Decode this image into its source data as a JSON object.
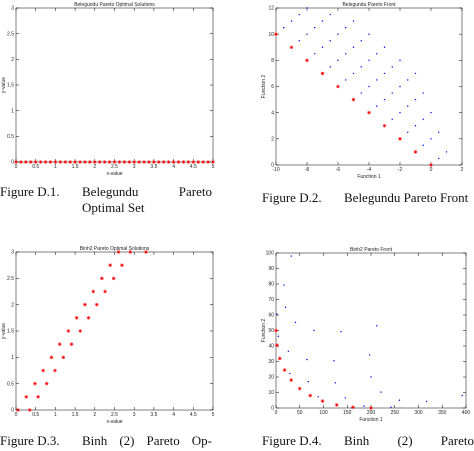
{
  "chart_data": [
    {
      "type": "scatter",
      "title": "Belegundu Pareto Optimal Solutions",
      "xlabel": "x-value",
      "ylabel": "y-value",
      "xlim": [
        0,
        5
      ],
      "ylim": [
        0,
        3
      ],
      "xticks": [
        0,
        0.5,
        1,
        1.5,
        2,
        2.5,
        3,
        3.5,
        4,
        4.5,
        5
      ],
      "yticks": [
        0,
        0.5,
        1,
        1.5,
        2,
        2.5,
        3
      ],
      "series": [
        {
          "color": "#ff0000",
          "marker": "star",
          "x": [
            0,
            0.125,
            0.25,
            0.375,
            0.5,
            0.625,
            0.75,
            0.875,
            1,
            1.125,
            1.25,
            1.375,
            1.5,
            1.625,
            1.75,
            1.875,
            2,
            2.125,
            2.25,
            2.375,
            2.5,
            2.625,
            2.75,
            2.875,
            3,
            3.125,
            3.25,
            3.375,
            3.5,
            3.625,
            3.75,
            3.875,
            4,
            4.125,
            4.25,
            4.375,
            4.5,
            4.625,
            4.75,
            4.875,
            5
          ],
          "values": [
            0,
            0,
            0,
            0,
            0,
            0,
            0,
            0,
            0,
            0,
            0,
            0,
            0,
            0,
            0,
            0,
            0,
            0,
            0,
            0,
            0,
            0,
            0,
            0,
            0,
            0,
            0,
            0,
            0,
            0,
            0,
            0,
            0,
            0,
            0,
            0,
            0,
            0,
            0,
            0,
            0
          ]
        }
      ]
    },
    {
      "type": "scatter",
      "title": "Belegundu Pareto Front",
      "xlabel": "Function 1",
      "ylabel": "Function 2",
      "xlim": [
        -10,
        2
      ],
      "ylim": [
        0,
        12
      ],
      "xticks": [
        -10,
        -8,
        -6,
        -4,
        -2,
        0,
        2
      ],
      "yticks": [
        0,
        2,
        4,
        6,
        8,
        10,
        12
      ],
      "series": [
        {
          "color": "#0000ff",
          "marker": "dot",
          "x": [
            0.5,
            -0.5,
            -1.5,
            -2.5,
            -3.5,
            -4.5,
            -5.5,
            -6.5,
            -7.5,
            -8.5,
            -9.5,
            1,
            0,
            -1,
            -2,
            -3,
            -4,
            -5,
            -6,
            -7,
            -8,
            -9,
            0.5,
            -0.5,
            -1.5,
            -2.5,
            -3.5,
            -4.5,
            -5.5,
            -6.5,
            -7.5,
            -8.5,
            0,
            -1,
            -2,
            -3,
            -4,
            -5,
            -6,
            -7,
            -8,
            -0.5,
            -1.5,
            -2.5,
            -3.5,
            -4.5,
            -5.5,
            -6.5,
            -1,
            -2,
            -3,
            -4,
            -5
          ],
          "values": [
            0.5,
            1.5,
            2.5,
            3.5,
            4.5,
            5.5,
            6.5,
            7.5,
            8.5,
            9.5,
            10.5,
            1,
            2,
            3,
            4,
            5,
            6,
            7,
            8,
            9,
            10,
            11,
            2.5,
            3.5,
            4.5,
            5.5,
            6.5,
            7.5,
            8.5,
            9.5,
            10.5,
            11.5,
            4,
            5,
            6,
            7,
            8,
            9,
            10,
            11,
            12,
            5.5,
            6.5,
            7.5,
            8.5,
            9.5,
            10.5,
            11.5,
            7,
            8,
            9,
            10,
            11
          ]
        },
        {
          "color": "#ff0000",
          "marker": "star",
          "x": [
            0,
            -1,
            -2,
            -3,
            -4,
            -5,
            -6,
            -7,
            -8,
            -9,
            -10
          ],
          "values": [
            0,
            1,
            2,
            3,
            4,
            5,
            6,
            7,
            8,
            9,
            10
          ]
        }
      ]
    },
    {
      "type": "scatter",
      "title": "Binh2 Pareto Optimal Solutions",
      "xlabel": "x-value",
      "ylabel": "y-value",
      "xlim": [
        0,
        5
      ],
      "ylim": [
        0,
        3
      ],
      "xticks": [
        0,
        0.5,
        1,
        1.5,
        2,
        2.5,
        3,
        3.5,
        4,
        4.5,
        5
      ],
      "yticks": [
        0,
        0.5,
        1,
        1.5,
        2,
        2.5,
        3
      ],
      "series": [
        {
          "color": "#ff0000",
          "marker": "star",
          "x": [
            0.05,
            0.26,
            0.48,
            0.69,
            0.9,
            1.11,
            1.33,
            1.54,
            1.75,
            1.96,
            2.18,
            2.39,
            2.6,
            0.35,
            0.56,
            0.78,
            0.99,
            1.2,
            1.41,
            1.63,
            1.84,
            2.05,
            2.26,
            2.48,
            2.69,
            2.9,
            3.3
          ],
          "values": [
            0,
            0.25,
            0.5,
            0.75,
            1,
            1.25,
            1.5,
            1.75,
            2,
            2.25,
            2.5,
            2.75,
            3,
            0,
            0.25,
            0.5,
            0.75,
            1,
            1.25,
            1.5,
            1.75,
            2,
            2.25,
            2.5,
            2.75,
            3,
            3
          ]
        }
      ]
    },
    {
      "type": "scatter",
      "title": "Binh2 Pareto Front",
      "xlabel": "Function 1",
      "ylabel": "Function 2",
      "xlim": [
        0,
        400
      ],
      "ylim": [
        0,
        100
      ],
      "xticks": [
        0,
        50,
        100,
        150,
        200,
        250,
        300,
        350,
        400
      ],
      "yticks": [
        0,
        10,
        20,
        30,
        40,
        50,
        60,
        70,
        80,
        90,
        100
      ],
      "series": [
        {
          "color": "#0000ff",
          "marker": "dot",
          "x": [
            32,
            17,
            20,
            41,
            80,
            137,
            212,
            2,
            5,
            26,
            65,
            122,
            197,
            8,
            29,
            68,
            125,
            200,
            50,
            89,
            146,
            221,
            128,
            185,
            260,
            242,
            317,
            392
          ],
          "values": [
            98,
            79.25,
            65,
            55.25,
            50,
            49.25,
            53,
            60.5,
            46.25,
            36.5,
            31.25,
            30.5,
            34.25,
            32,
            22.25,
            17,
            16.25,
            20,
            12.5,
            7.25,
            6.5,
            10.25,
            2,
            1.25,
            5,
            0.5,
            4.25,
            8
          ]
        },
        {
          "color": "#ff0000",
          "marker": "star",
          "x": [
            0,
            2,
            8,
            18,
            32,
            50,
            72,
            98,
            128,
            162,
            200
          ],
          "values": [
            50,
            40.5,
            32,
            24.5,
            18,
            12.5,
            8,
            4.5,
            2,
            0.5,
            0
          ]
        }
      ]
    }
  ],
  "captions": [
    {
      "label": "Figure D.1.",
      "text": "Belegundu Pareto Optimal Set"
    },
    {
      "label": "Figure D.2.",
      "text": "Belegundu Pareto Front"
    },
    {
      "label": "Figure D.3.",
      "text": "Binh (2) Pareto Op-"
    },
    {
      "label": "Figure D.4.",
      "text": "Binh (2) Pareto"
    }
  ]
}
